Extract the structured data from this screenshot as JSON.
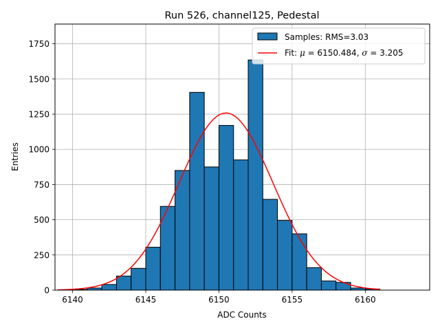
{
  "chart_data": {
    "type": "bar",
    "title": "Run 526, channel125, Pedestal",
    "xlabel": "ADC Counts",
    "ylabel": "Entries",
    "xlim": [
      6138.8,
      6164.4
    ],
    "ylim": [
      0,
      1890
    ],
    "xticks": [
      6140,
      6145,
      6150,
      6155,
      6160
    ],
    "yticks": [
      0,
      250,
      500,
      750,
      1000,
      1250,
      1500,
      1750
    ],
    "grid": true,
    "legend_position": "top-right",
    "bin_width": 1,
    "bin_edges_start": [
      6139,
      6140,
      6141,
      6142,
      6143,
      6144,
      6145,
      6146,
      6147,
      6148,
      6149,
      6150,
      6151,
      6152,
      6153,
      6154,
      6155,
      6156,
      6157,
      6158,
      6159,
      6160
    ],
    "counts": [
      2,
      5,
      15,
      40,
      100,
      155,
      305,
      595,
      850,
      1405,
      875,
      1170,
      925,
      1635,
      645,
      495,
      400,
      160,
      65,
      55,
      15,
      8
    ],
    "series": [
      {
        "name": "Samples: RMS=3.03",
        "kind": "histogram",
        "color": "#1f77b4",
        "edgecolor": "#000000"
      },
      {
        "name": "Fit: μ = 6150.484, σ = 3.205",
        "kind": "gaussian-fit",
        "color": "#ff0000",
        "mu": 6150.484,
        "sigma": 3.205,
        "amplitude": 1258,
        "x_range": [
          6139,
          6161
        ]
      }
    ],
    "legend": {
      "samples_label": "Samples: RMS=3.03",
      "fit_label_prefix": "Fit: ",
      "fit_mu_symbol": "μ",
      "fit_mu_text": " = 6150.484, ",
      "fit_sigma_symbol": "σ",
      "fit_sigma_text": " = 3.205"
    }
  }
}
